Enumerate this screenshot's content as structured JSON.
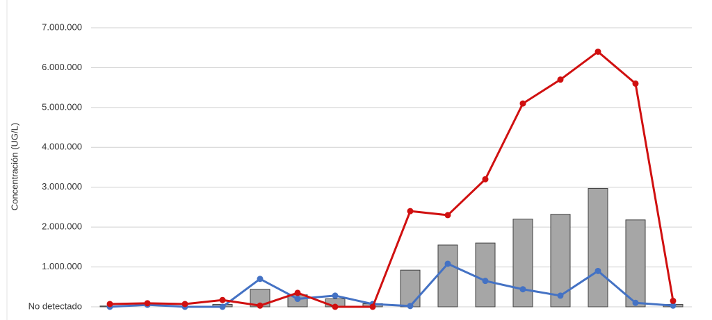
{
  "chart_data": {
    "type": "combo",
    "y_label": "Concentración (UG/L)",
    "categories": [
      null,
      null,
      null,
      null,
      null,
      null,
      null,
      null,
      null,
      null,
      null,
      null,
      null,
      null,
      null,
      null
    ],
    "series": [
      {
        "type": "bar",
        "color": "#a6a6a6",
        "values": [
          20000,
          0,
          0,
          60000,
          440000,
          300000,
          200000,
          80000,
          920000,
          1550000,
          1600000,
          2200000,
          2320000,
          2970000,
          2180000,
          60000
        ]
      },
      {
        "type": "line",
        "color": "#4472c4",
        "values": [
          0,
          50000,
          0,
          0,
          700000,
          200000,
          280000,
          70000,
          20000,
          1080000,
          650000,
          440000,
          280000,
          900000,
          100000,
          30000
        ]
      },
      {
        "type": "line",
        "color": "#d01010",
        "values": [
          70000,
          90000,
          70000,
          170000,
          30000,
          350000,
          0,
          0,
          2400000,
          2300000,
          3200000,
          5100000,
          5700000,
          6400000,
          5600000,
          150000
        ]
      }
    ],
    "ylim": [
      0,
      7000000
    ],
    "yticks": [
      {
        "value": 0,
        "label": "No detectado"
      },
      {
        "value": 1000000,
        "label": "1.000.000"
      },
      {
        "value": 2000000,
        "label": "2.000.000"
      },
      {
        "value": 3000000,
        "label": "3.000.000"
      },
      {
        "value": 4000000,
        "label": "4.000.000"
      },
      {
        "value": 5000000,
        "label": "5.000.000"
      },
      {
        "value": 6000000,
        "label": "6.000.000"
      },
      {
        "value": 7000000,
        "label": "7.000.000"
      }
    ],
    "grid": true
  }
}
